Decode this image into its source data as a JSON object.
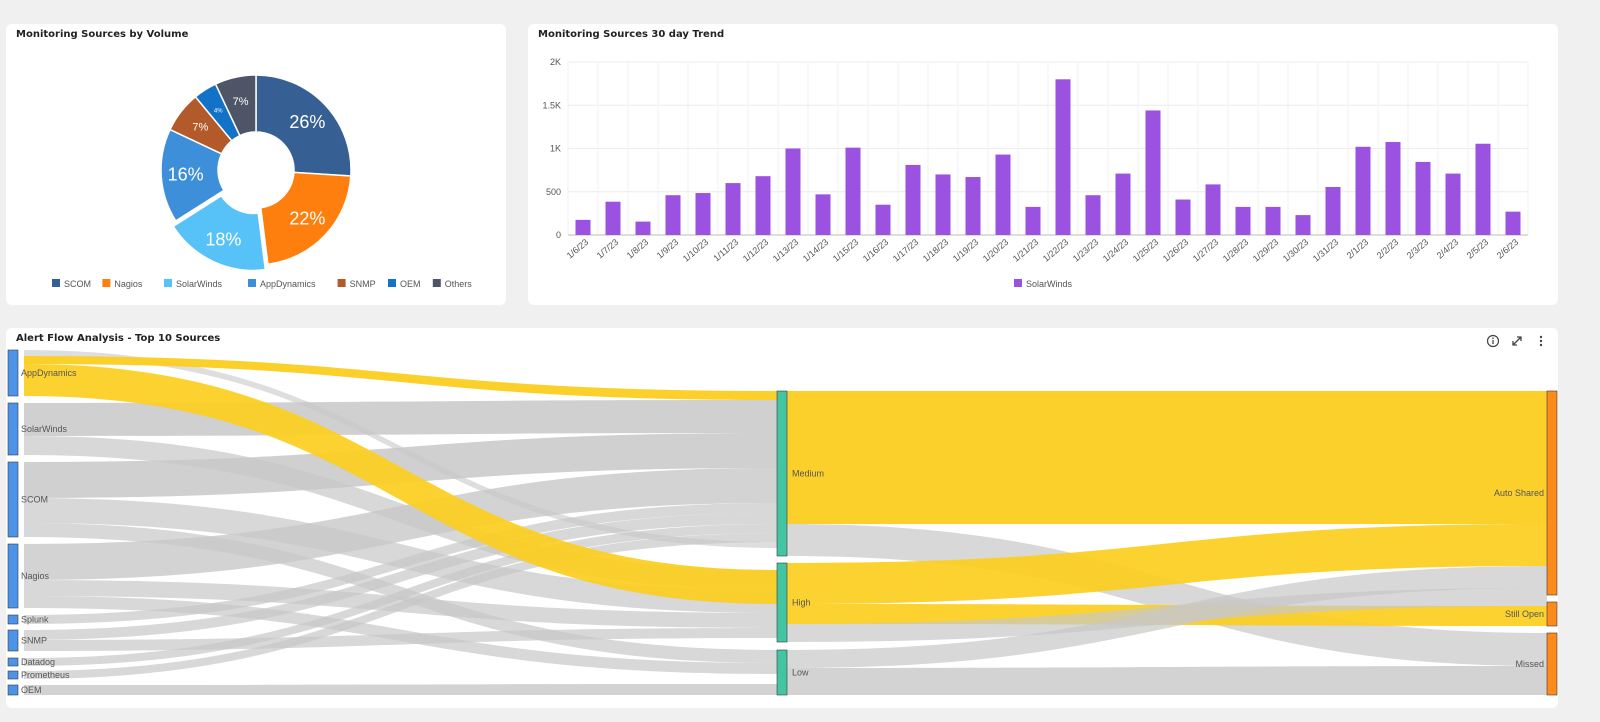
{
  "donut": {
    "title": "Monitoring Sources by Volume",
    "chart_data": {
      "type": "pie",
      "title": "Monitoring Sources by Volume",
      "slices": [
        {
          "label": "SCOM",
          "value": 26,
          "text": "26%",
          "color": "#365f93"
        },
        {
          "label": "Nagios",
          "value": 22,
          "text": "22%",
          "color": "#ff7f0e"
        },
        {
          "label": "SolarWinds",
          "value": 18,
          "text": "18%",
          "color": "#56c2f8"
        },
        {
          "label": "AppDynamics",
          "value": 16,
          "text": "16%",
          "color": "#3d8fd9"
        },
        {
          "label": "SNMP",
          "value": 7,
          "text": "7%",
          "color": "#b35a2a"
        },
        {
          "label": "OEM",
          "value": 4,
          "text": "4%",
          "color": "#1272c7"
        },
        {
          "label": "Others",
          "value": 7,
          "text": "7%",
          "color": "#4d5566"
        }
      ],
      "legend_position": "bottom"
    }
  },
  "trend": {
    "title": "Monitoring Sources 30 day Trend",
    "chart_data": {
      "type": "bar",
      "title": "Monitoring Sources 30 day Trend",
      "categories": [
        "1/6/23",
        "1/7/23",
        "1/8/23",
        "1/9/23",
        "1/10/23",
        "1/11/23",
        "1/12/23",
        "1/13/23",
        "1/14/23",
        "1/15/23",
        "1/16/23",
        "1/17/23",
        "1/18/23",
        "1/19/23",
        "1/20/23",
        "1/21/23",
        "1/22/23",
        "1/23/23",
        "1/24/23",
        "1/25/23",
        "1/26/23",
        "1/27/23",
        "1/28/23",
        "1/29/23",
        "1/30/23",
        "1/31/23",
        "2/1/23",
        "2/2/23",
        "2/3/23",
        "2/4/23",
        "2/5/23",
        "2/6/23"
      ],
      "series": [
        {
          "name": "SolarWinds",
          "color": "#9b52e0",
          "values": [
            175,
            385,
            155,
            460,
            485,
            600,
            680,
            1000,
            470,
            1010,
            350,
            810,
            700,
            670,
            930,
            325,
            1800,
            460,
            710,
            1440,
            410,
            585,
            325,
            325,
            230,
            555,
            1020,
            1075,
            845,
            710,
            1055,
            270
          ]
        }
      ],
      "yticks": [
        "0",
        "500",
        "1K",
        "1.5K",
        "2K"
      ],
      "ylim": [
        0,
        2000
      ],
      "grid": true,
      "legend_position": "bottom"
    }
  },
  "sankey": {
    "title": "Alert Flow Analysis - Top 10 Sources",
    "chart_data": {
      "type": "sankey",
      "sources": [
        "AppDynamics",
        "SolarWinds",
        "SCOM",
        "Nagios",
        "Splunk",
        "SNMP",
        "Datadog",
        "Prometheus",
        "OEM"
      ],
      "priorities": [
        "Medium",
        "High",
        "Low"
      ],
      "outcomes": [
        "Auto Shared",
        "Still Open",
        "Missed"
      ],
      "highlight_color": "#fcce20",
      "flow_color": "#c8c8c8"
    }
  }
}
